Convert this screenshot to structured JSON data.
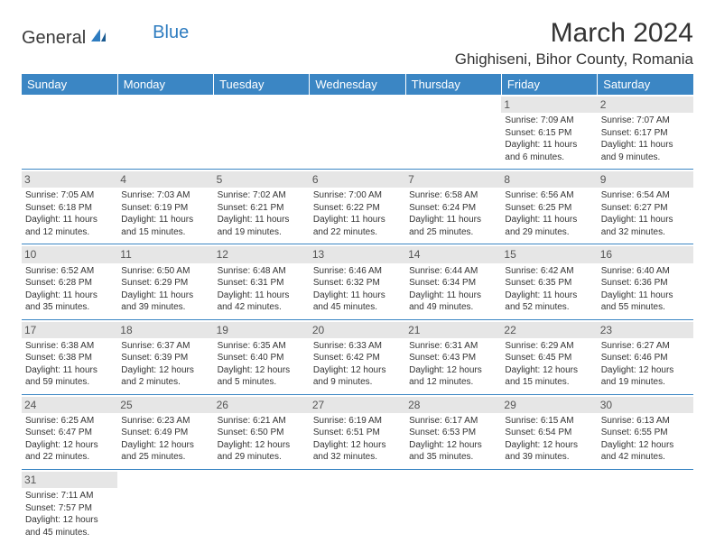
{
  "logo": {
    "text1": "General",
    "text2": "Blue"
  },
  "title": "March 2024",
  "location": "Ghighiseni, Bihor County, Romania",
  "colors": {
    "header_bg": "#3b86c4",
    "header_text": "#ffffff",
    "daynum_bg": "#e6e6e6",
    "border": "#3b86c4",
    "text": "#333333"
  },
  "weekdays": [
    "Sunday",
    "Monday",
    "Tuesday",
    "Wednesday",
    "Thursday",
    "Friday",
    "Saturday"
  ],
  "weeks": [
    [
      null,
      null,
      null,
      null,
      null,
      {
        "n": "1",
        "sr": "7:09 AM",
        "ss": "6:15 PM",
        "dl": "11 hours and 6 minutes."
      },
      {
        "n": "2",
        "sr": "7:07 AM",
        "ss": "6:17 PM",
        "dl": "11 hours and 9 minutes."
      }
    ],
    [
      {
        "n": "3",
        "sr": "7:05 AM",
        "ss": "6:18 PM",
        "dl": "11 hours and 12 minutes."
      },
      {
        "n": "4",
        "sr": "7:03 AM",
        "ss": "6:19 PM",
        "dl": "11 hours and 15 minutes."
      },
      {
        "n": "5",
        "sr": "7:02 AM",
        "ss": "6:21 PM",
        "dl": "11 hours and 19 minutes."
      },
      {
        "n": "6",
        "sr": "7:00 AM",
        "ss": "6:22 PM",
        "dl": "11 hours and 22 minutes."
      },
      {
        "n": "7",
        "sr": "6:58 AM",
        "ss": "6:24 PM",
        "dl": "11 hours and 25 minutes."
      },
      {
        "n": "8",
        "sr": "6:56 AM",
        "ss": "6:25 PM",
        "dl": "11 hours and 29 minutes."
      },
      {
        "n": "9",
        "sr": "6:54 AM",
        "ss": "6:27 PM",
        "dl": "11 hours and 32 minutes."
      }
    ],
    [
      {
        "n": "10",
        "sr": "6:52 AM",
        "ss": "6:28 PM",
        "dl": "11 hours and 35 minutes."
      },
      {
        "n": "11",
        "sr": "6:50 AM",
        "ss": "6:29 PM",
        "dl": "11 hours and 39 minutes."
      },
      {
        "n": "12",
        "sr": "6:48 AM",
        "ss": "6:31 PM",
        "dl": "11 hours and 42 minutes."
      },
      {
        "n": "13",
        "sr": "6:46 AM",
        "ss": "6:32 PM",
        "dl": "11 hours and 45 minutes."
      },
      {
        "n": "14",
        "sr": "6:44 AM",
        "ss": "6:34 PM",
        "dl": "11 hours and 49 minutes."
      },
      {
        "n": "15",
        "sr": "6:42 AM",
        "ss": "6:35 PM",
        "dl": "11 hours and 52 minutes."
      },
      {
        "n": "16",
        "sr": "6:40 AM",
        "ss": "6:36 PM",
        "dl": "11 hours and 55 minutes."
      }
    ],
    [
      {
        "n": "17",
        "sr": "6:38 AM",
        "ss": "6:38 PM",
        "dl": "11 hours and 59 minutes."
      },
      {
        "n": "18",
        "sr": "6:37 AM",
        "ss": "6:39 PM",
        "dl": "12 hours and 2 minutes."
      },
      {
        "n": "19",
        "sr": "6:35 AM",
        "ss": "6:40 PM",
        "dl": "12 hours and 5 minutes."
      },
      {
        "n": "20",
        "sr": "6:33 AM",
        "ss": "6:42 PM",
        "dl": "12 hours and 9 minutes."
      },
      {
        "n": "21",
        "sr": "6:31 AM",
        "ss": "6:43 PM",
        "dl": "12 hours and 12 minutes."
      },
      {
        "n": "22",
        "sr": "6:29 AM",
        "ss": "6:45 PM",
        "dl": "12 hours and 15 minutes."
      },
      {
        "n": "23",
        "sr": "6:27 AM",
        "ss": "6:46 PM",
        "dl": "12 hours and 19 minutes."
      }
    ],
    [
      {
        "n": "24",
        "sr": "6:25 AM",
        "ss": "6:47 PM",
        "dl": "12 hours and 22 minutes."
      },
      {
        "n": "25",
        "sr": "6:23 AM",
        "ss": "6:49 PM",
        "dl": "12 hours and 25 minutes."
      },
      {
        "n": "26",
        "sr": "6:21 AM",
        "ss": "6:50 PM",
        "dl": "12 hours and 29 minutes."
      },
      {
        "n": "27",
        "sr": "6:19 AM",
        "ss": "6:51 PM",
        "dl": "12 hours and 32 minutes."
      },
      {
        "n": "28",
        "sr": "6:17 AM",
        "ss": "6:53 PM",
        "dl": "12 hours and 35 minutes."
      },
      {
        "n": "29",
        "sr": "6:15 AM",
        "ss": "6:54 PM",
        "dl": "12 hours and 39 minutes."
      },
      {
        "n": "30",
        "sr": "6:13 AM",
        "ss": "6:55 PM",
        "dl": "12 hours and 42 minutes."
      }
    ],
    [
      {
        "n": "31",
        "sr": "7:11 AM",
        "ss": "7:57 PM",
        "dl": "12 hours and 45 minutes."
      },
      null,
      null,
      null,
      null,
      null,
      null
    ]
  ],
  "labels": {
    "sunrise": "Sunrise:",
    "sunset": "Sunset:",
    "daylight": "Daylight:"
  }
}
